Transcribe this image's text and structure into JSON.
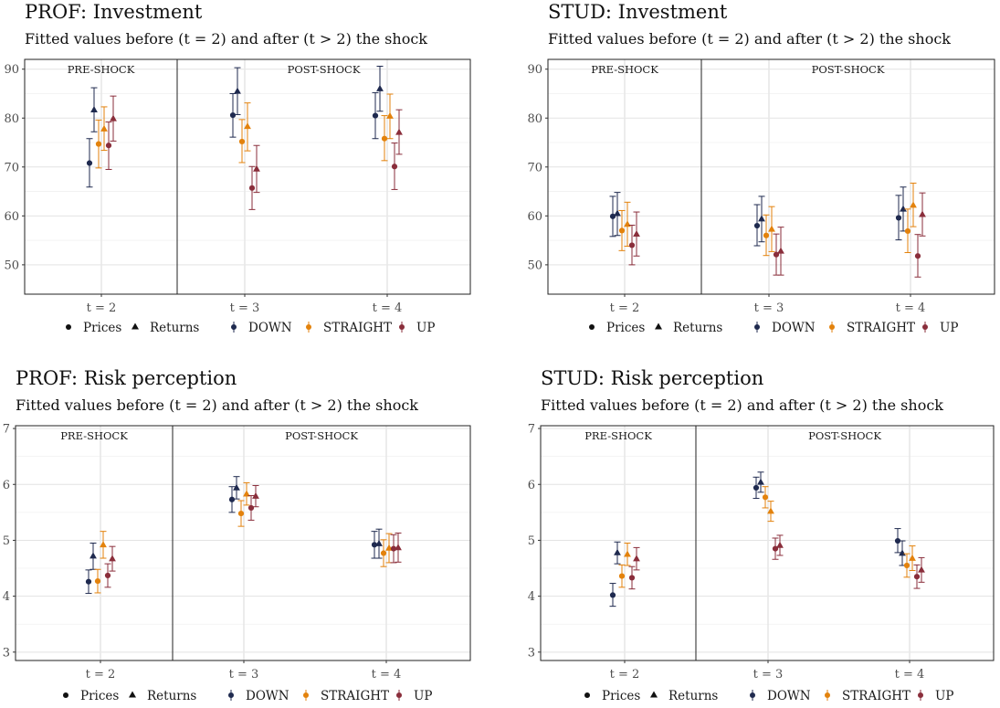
{
  "chart_data": [
    {
      "type": "scatter",
      "title": "PROF: Investment",
      "subtitle": "Fitted values before (t = 2) and after (t > 2) the shock",
      "ylim": [
        44,
        92
      ],
      "yticks": [
        50,
        60,
        70,
        80,
        90
      ],
      "categories": [
        "t = 2",
        "t = 3",
        "t = 4"
      ],
      "facets": [
        "PRE-SHOCK",
        "POST-SHOCK"
      ],
      "series": [
        {
          "name": "Prices DOWN",
          "shape": "circle",
          "color": "#1f2a4f",
          "values": [
            70.8,
            80.6,
            80.5
          ],
          "lower": [
            65.9,
            76.1,
            75.8
          ],
          "upper": [
            75.8,
            85.0,
            85.2
          ]
        },
        {
          "name": "Returns DOWN",
          "shape": "triangle",
          "color": "#1f2a4f",
          "values": [
            81.7,
            85.5,
            86.0
          ],
          "lower": [
            77.2,
            80.7,
            81.4
          ],
          "upper": [
            86.2,
            90.3,
            90.6
          ]
        },
        {
          "name": "Prices STRAIGHT",
          "shape": "circle",
          "color": "#e3820c",
          "values": [
            74.7,
            75.2,
            75.8
          ],
          "lower": [
            69.8,
            70.9,
            71.3
          ],
          "upper": [
            79.6,
            79.7,
            80.5
          ]
        },
        {
          "name": "Returns STRAIGHT",
          "shape": "triangle",
          "color": "#e3820c",
          "values": [
            77.8,
            78.3,
            80.4
          ],
          "lower": [
            73.4,
            73.3,
            75.8
          ],
          "upper": [
            82.3,
            83.1,
            84.9
          ]
        },
        {
          "name": "Prices UP",
          "shape": "circle",
          "color": "#8a2e3b",
          "values": [
            74.4,
            65.7,
            70.1
          ],
          "lower": [
            69.5,
            61.3,
            65.4
          ],
          "upper": [
            79.2,
            70.1,
            74.9
          ]
        },
        {
          "name": "Returns UP",
          "shape": "triangle",
          "color": "#8a2e3b",
          "values": [
            79.9,
            69.6,
            77.1
          ],
          "lower": [
            75.3,
            64.8,
            72.6
          ],
          "upper": [
            84.5,
            74.4,
            81.7
          ]
        }
      ]
    },
    {
      "type": "scatter",
      "title": "STUD: Investment",
      "subtitle": "Fitted values before (t = 2) and after (t > 2) the shock",
      "ylim": [
        44,
        92
      ],
      "yticks": [
        50,
        60,
        70,
        80,
        90
      ],
      "categories": [
        "t = 2",
        "t = 3",
        "t = 4"
      ],
      "facets": [
        "PRE-SHOCK",
        "POST-SHOCK"
      ],
      "series": [
        {
          "name": "Prices DOWN",
          "shape": "circle",
          "color": "#1f2a4f",
          "values": [
            59.9,
            58.0,
            59.6
          ],
          "lower": [
            55.8,
            53.9,
            55.1
          ],
          "upper": [
            64.0,
            62.3,
            64.2
          ]
        },
        {
          "name": "Returns DOWN",
          "shape": "triangle",
          "color": "#1f2a4f",
          "values": [
            60.5,
            59.4,
            61.4
          ],
          "lower": [
            56.0,
            54.7,
            56.9
          ],
          "upper": [
            64.8,
            64.0,
            65.9
          ]
        },
        {
          "name": "Prices STRAIGHT",
          "shape": "circle",
          "color": "#e3820c",
          "values": [
            57.0,
            56.0,
            56.9
          ],
          "lower": [
            52.9,
            51.9,
            52.5
          ],
          "upper": [
            61.1,
            60.2,
            61.4
          ]
        },
        {
          "name": "Returns STRAIGHT",
          "shape": "triangle",
          "color": "#e3820c",
          "values": [
            58.3,
            57.3,
            62.2
          ],
          "lower": [
            53.8,
            52.7,
            57.8
          ],
          "upper": [
            62.8,
            61.9,
            66.7
          ]
        },
        {
          "name": "Prices UP",
          "shape": "circle",
          "color": "#8a2e3b",
          "values": [
            54.0,
            52.1,
            51.8
          ],
          "lower": [
            50.0,
            47.9,
            47.5
          ],
          "upper": [
            58.1,
            56.3,
            56.2
          ]
        },
        {
          "name": "Returns UP",
          "shape": "triangle",
          "color": "#8a2e3b",
          "values": [
            56.3,
            52.8,
            60.3
          ],
          "lower": [
            51.8,
            47.9,
            55.9
          ],
          "upper": [
            60.8,
            57.7,
            64.7
          ]
        }
      ]
    },
    {
      "type": "scatter",
      "title": "PROF: Risk perception",
      "subtitle": "Fitted values before (t = 2) and after (t > 2) the shock",
      "ylim": [
        2.85,
        7.05
      ],
      "yticks": [
        3,
        4,
        5,
        6,
        7
      ],
      "categories": [
        "t = 2",
        "t = 3",
        "t = 4"
      ],
      "facets": [
        "PRE-SHOCK",
        "POST-SHOCK"
      ],
      "series": [
        {
          "name": "Prices DOWN",
          "shape": "circle",
          "color": "#1f2a4f",
          "values": [
            4.26,
            5.73,
            4.92
          ],
          "lower": [
            4.05,
            5.5,
            4.68
          ],
          "upper": [
            4.47,
            5.96,
            5.16
          ]
        },
        {
          "name": "Returns DOWN",
          "shape": "triangle",
          "color": "#1f2a4f",
          "values": [
            4.72,
            5.94,
            4.94
          ],
          "lower": [
            4.48,
            5.74,
            4.68
          ],
          "upper": [
            4.95,
            6.14,
            5.2
          ]
        },
        {
          "name": "Prices STRAIGHT",
          "shape": "circle",
          "color": "#e3820c",
          "values": [
            4.27,
            5.48,
            4.77
          ],
          "lower": [
            4.06,
            5.25,
            4.53
          ],
          "upper": [
            4.48,
            5.71,
            5.01
          ]
        },
        {
          "name": "Returns STRAIGHT",
          "shape": "triangle",
          "color": "#e3820c",
          "values": [
            4.92,
            5.83,
            4.86
          ],
          "lower": [
            4.68,
            5.63,
            4.6
          ],
          "upper": [
            5.16,
            6.03,
            5.12
          ]
        },
        {
          "name": "Prices UP",
          "shape": "circle",
          "color": "#8a2e3b",
          "values": [
            4.37,
            5.58,
            4.85
          ],
          "lower": [
            4.16,
            5.36,
            4.6
          ],
          "upper": [
            4.58,
            5.8,
            5.1
          ]
        },
        {
          "name": "Returns UP",
          "shape": "triangle",
          "color": "#8a2e3b",
          "values": [
            4.67,
            5.79,
            4.87
          ],
          "lower": [
            4.45,
            5.6,
            4.61
          ],
          "upper": [
            4.89,
            5.98,
            5.13
          ]
        }
      ]
    },
    {
      "type": "scatter",
      "title": "STUD: Risk perception",
      "subtitle": "Fitted values before (t = 2) and after (t > 2) the shock",
      "ylim": [
        2.85,
        7.05
      ],
      "yticks": [
        3,
        4,
        5,
        6,
        7
      ],
      "categories": [
        "t = 2",
        "t = 3",
        "t = 4"
      ],
      "facets": [
        "PRE-SHOCK",
        "POST-SHOCK"
      ],
      "series": [
        {
          "name": "Prices DOWN",
          "shape": "circle",
          "color": "#1f2a4f",
          "values": [
            4.02,
            5.94,
            4.99
          ],
          "lower": [
            3.82,
            5.75,
            4.78
          ],
          "upper": [
            4.23,
            6.13,
            5.21
          ]
        },
        {
          "name": "Returns DOWN",
          "shape": "triangle",
          "color": "#1f2a4f",
          "values": [
            4.78,
            6.04,
            4.77
          ],
          "lower": [
            4.58,
            5.86,
            4.55
          ],
          "upper": [
            4.97,
            6.22,
            4.99
          ]
        },
        {
          "name": "Prices STRAIGHT",
          "shape": "circle",
          "color": "#e3820c",
          "values": [
            4.36,
            5.77,
            4.55
          ],
          "lower": [
            4.16,
            5.58,
            4.34
          ],
          "upper": [
            4.56,
            5.96,
            4.76
          ]
        },
        {
          "name": "Returns STRAIGHT",
          "shape": "triangle",
          "color": "#e3820c",
          "values": [
            4.75,
            5.52,
            4.68
          ],
          "lower": [
            4.55,
            5.34,
            4.46
          ],
          "upper": [
            4.95,
            5.7,
            4.9
          ]
        },
        {
          "name": "Prices UP",
          "shape": "circle",
          "color": "#8a2e3b",
          "values": [
            4.33,
            4.85,
            4.35
          ],
          "lower": [
            4.13,
            4.66,
            4.14
          ],
          "upper": [
            4.53,
            5.04,
            4.56
          ]
        },
        {
          "name": "Returns UP",
          "shape": "triangle",
          "color": "#8a2e3b",
          "values": [
            4.67,
            4.91,
            4.47
          ],
          "lower": [
            4.47,
            4.73,
            4.25
          ],
          "upper": [
            4.87,
            5.09,
            4.69
          ]
        }
      ]
    }
  ],
  "legend": {
    "shapes": [
      {
        "label": "Prices",
        "shape": "circle"
      },
      {
        "label": "Returns",
        "shape": "triangle"
      }
    ],
    "colors": [
      {
        "label": "DOWN",
        "color": "#1f2a4f"
      },
      {
        "label": "STRAIGHT",
        "color": "#e3820c"
      },
      {
        "label": "UP",
        "color": "#8a2e3b"
      }
    ]
  }
}
